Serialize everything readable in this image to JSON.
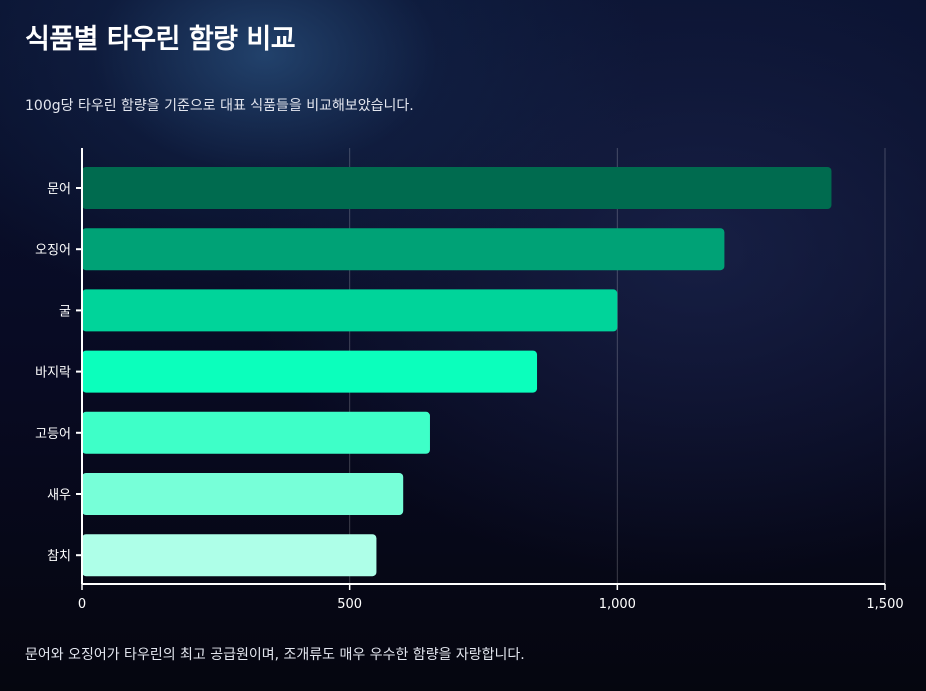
{
  "title": "식품별 타우린 함량 비교",
  "subtitle": "100g당 타우린 함량을 기준으로 대표 식품들을 비교해보았습니다.",
  "footer": "문어와 오징어가 타우린의 최고 공급원이며, 조개류도 매우 우수한 함량을 자랑합니다.",
  "chart_data": {
    "type": "bar",
    "orientation": "horizontal",
    "categories": [
      "문어",
      "오징어",
      "굴",
      "바지락",
      "고등어",
      "새우",
      "참치"
    ],
    "values": [
      1400,
      1200,
      1000,
      850,
      650,
      600,
      550
    ],
    "colors": [
      "#006b4f",
      "#00a276",
      "#00d49a",
      "#0bffbc",
      "#3effc8",
      "#77ffd8",
      "#aeffe8"
    ],
    "xlim": [
      0,
      1500
    ],
    "xticks": [
      0,
      500,
      1000,
      1500
    ],
    "xtick_labels": [
      "0",
      "500",
      "1,000",
      "1,500"
    ],
    "grid": true,
    "xlabel": "",
    "ylabel": ""
  }
}
